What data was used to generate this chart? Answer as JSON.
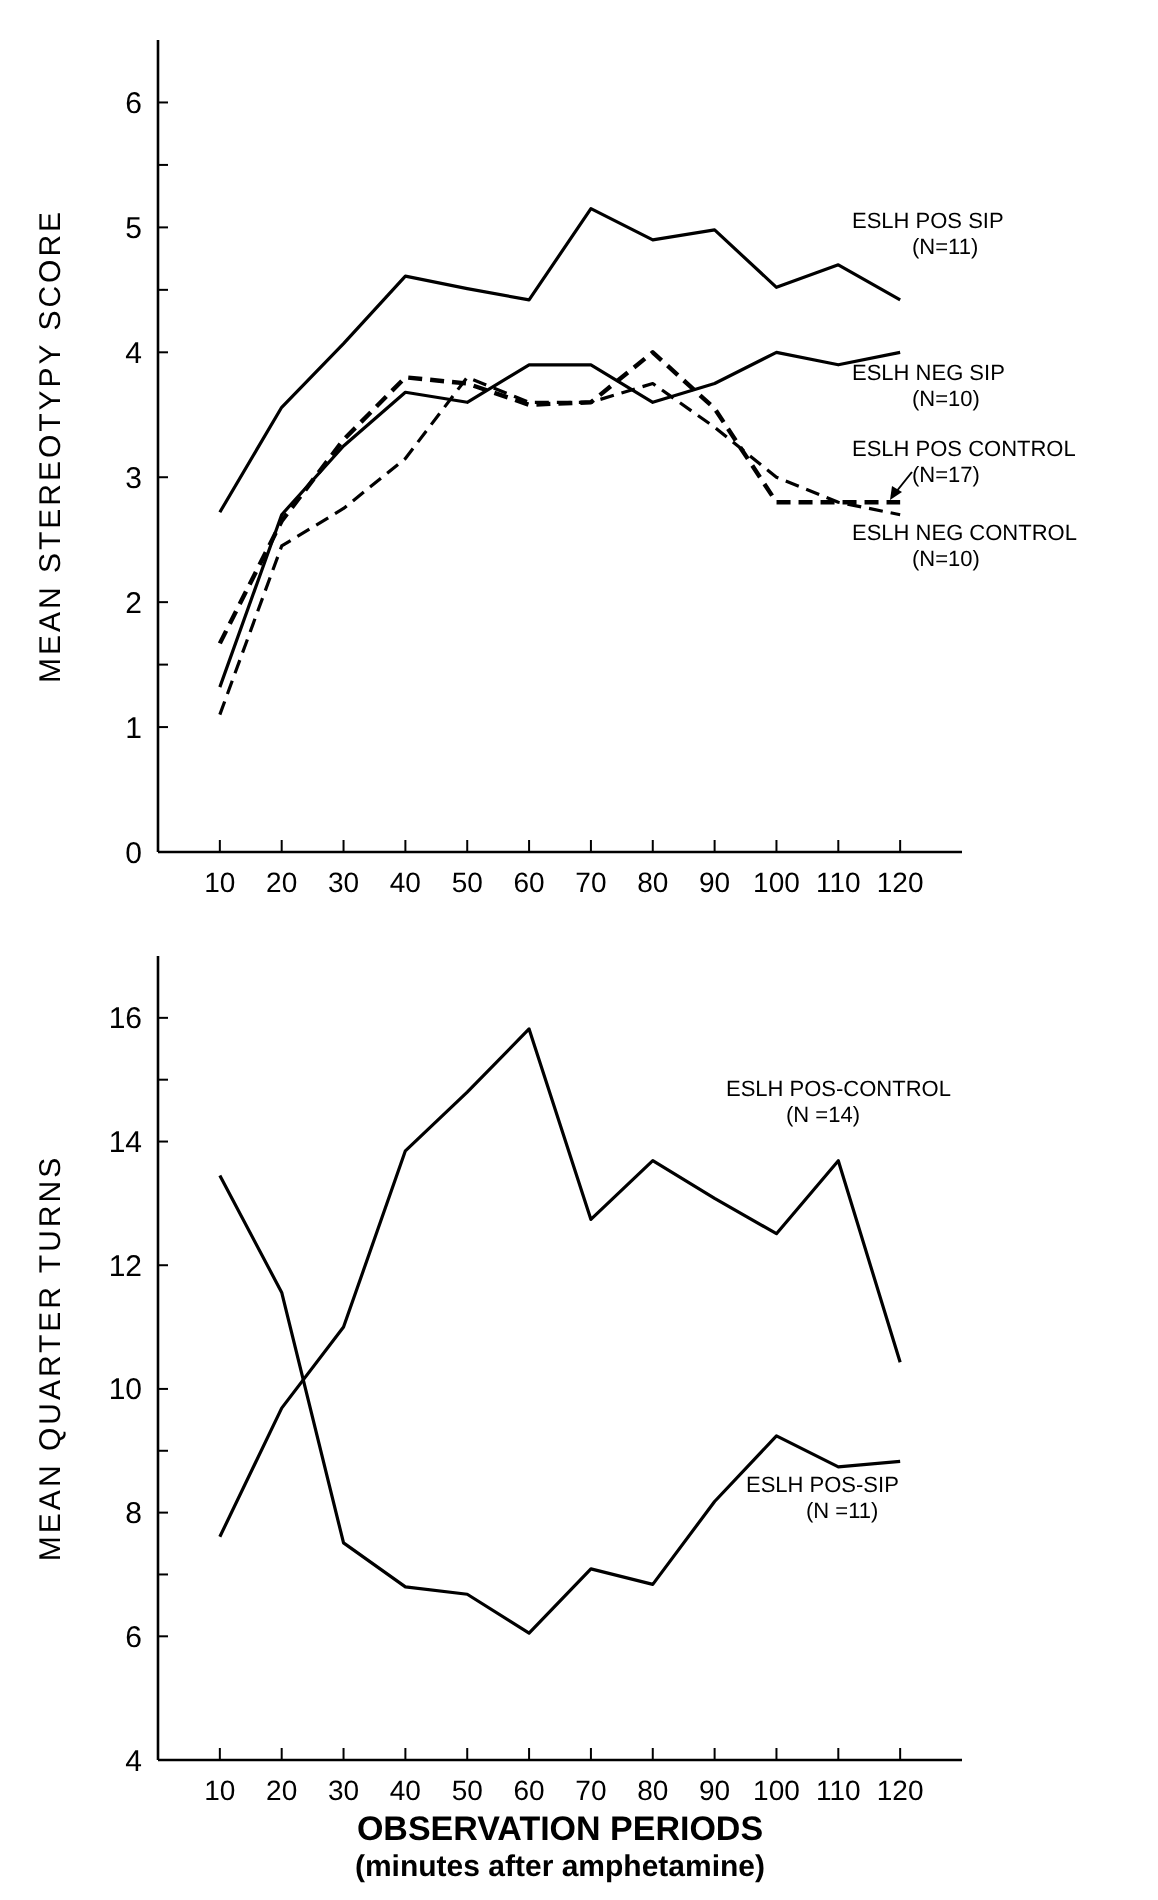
{
  "chart_data": [
    {
      "type": "line",
      "ylabel": "MEAN STEREOTYPY SCORE",
      "x": [
        10,
        20,
        30,
        40,
        50,
        60,
        70,
        80,
        90,
        100,
        110,
        120
      ],
      "xlim": [
        0,
        130
      ],
      "xticks": [
        {
          "value": 10,
          "label": "10"
        },
        {
          "value": 20,
          "label": "20"
        },
        {
          "value": 30,
          "label": "30"
        },
        {
          "value": 40,
          "label": "40"
        },
        {
          "value": 50,
          "label": "50"
        },
        {
          "value": 60,
          "label": "60"
        },
        {
          "value": 70,
          "label": "70"
        },
        {
          "value": 80,
          "label": "80"
        },
        {
          "value": 90,
          "label": "90"
        },
        {
          "value": 100,
          "label": "100"
        },
        {
          "value": 110,
          "label": "110"
        },
        {
          "value": 120,
          "label": "120"
        }
      ],
      "ylim": [
        0,
        6.5
      ],
      "yticks": [
        0,
        1,
        {
          "value": 1.5,
          "label": null
        },
        2,
        3,
        4,
        {
          "value": 4.5,
          "label": null
        },
        5,
        {
          "value": 5.5,
          "label": null
        },
        6
      ],
      "grid": false,
      "marker": "none",
      "series": [
        {
          "name": "ESLH POS SIP (N=11)",
          "color": "#000000",
          "line_style": "solid",
          "values": [
            2.72,
            3.56,
            4.07,
            4.61,
            4.51,
            4.42,
            5.15,
            4.9,
            4.98,
            4.52,
            4.7,
            4.42
          ]
        },
        {
          "name": "ESLH NEG SIP (N=10)",
          "color": "#000000",
          "line_style": "solid",
          "values": [
            1.32,
            2.7,
            3.25,
            3.68,
            3.6,
            3.9,
            3.9,
            3.6,
            3.75,
            4.0,
            3.9,
            4.0
          ]
        },
        {
          "name": "ESLH POS CONTROL (N=17)",
          "color": "#000000",
          "line_style": "dashed",
          "values": [
            1.67,
            2.65,
            3.3,
            3.8,
            3.75,
            3.58,
            3.6,
            4.0,
            3.55,
            2.8,
            2.8,
            2.8
          ]
        },
        {
          "name": "ESLH NEG CONTROL (N=10)",
          "color": "#000000",
          "line_style": "dashed",
          "values": [
            1.1,
            2.45,
            2.75,
            3.15,
            3.8,
            3.6,
            3.6,
            3.75,
            3.4,
            3.0,
            2.8,
            2.7
          ]
        }
      ]
    },
    {
      "type": "line",
      "ylabel": "MEAN QUARTER TURNS",
      "xlabel": "OBSERVATION PERIODS (minutes after amphetamine)",
      "x": [
        10,
        20,
        30,
        40,
        50,
        60,
        70,
        80,
        90,
        100,
        110,
        120
      ],
      "xlim": [
        0,
        130
      ],
      "xticks": [
        {
          "value": 10,
          "label": "10"
        },
        {
          "value": 20,
          "label": "20"
        },
        {
          "value": 30,
          "label": "30"
        },
        {
          "value": 40,
          "label": "40"
        },
        {
          "value": 50,
          "label": "50"
        },
        {
          "value": 60,
          "label": "60"
        },
        {
          "value": 70,
          "label": "70"
        },
        {
          "value": 80,
          "label": "80"
        },
        {
          "value": 90,
          "label": "90"
        },
        {
          "value": 100,
          "label": "100"
        },
        {
          "value": 110,
          "label": "110"
        },
        {
          "value": 120,
          "label": "120"
        }
      ],
      "ylim": [
        4,
        17
      ],
      "yticks": [
        4,
        6,
        {
          "value": 7,
          "label": null
        },
        8,
        {
          "value": 9,
          "label": null
        },
        10,
        12,
        14,
        {
          "value": 15,
          "label": null
        },
        16
      ],
      "grid": false,
      "marker": "none",
      "series": [
        {
          "name": "ESLH POS-CONTROL (N =14)",
          "color": "#000000",
          "line_style": "solid",
          "values": [
            7.61,
            9.69,
            11.0,
            13.85,
            14.8,
            15.82,
            12.74,
            13.69,
            13.08,
            12.51,
            13.69,
            10.43
          ]
        },
        {
          "name": "ESLH POS-SIP (N =11)",
          "color": "#000000",
          "line_style": "solid",
          "values": [
            13.45,
            11.56,
            7.51,
            6.8,
            6.68,
            6.05,
            7.09,
            6.84,
            8.18,
            9.24,
            8.74,
            8.83
          ]
        }
      ]
    }
  ]
}
